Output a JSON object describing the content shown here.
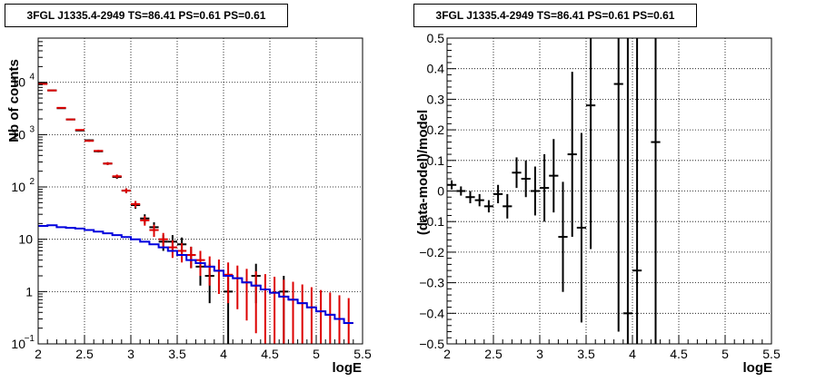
{
  "chart_data": [
    {
      "type": "histogram",
      "title": "3FGL J1335.4-2949 TS=86.41 PS=0.61 PS=0.61",
      "xlabel": "logE",
      "ylabel": "Nb of counts",
      "xlim": [
        2,
        5.5
      ],
      "ylim": [
        0.1,
        70000
      ],
      "yscale": "log",
      "grid": true,
      "x_ticks": [
        "2",
        "2.5",
        "3",
        "3.5",
        "4",
        "4.5",
        "5",
        "5.5"
      ],
      "y_ticks": [
        {
          "value": 0.1,
          "label": "10",
          "exp": "−1"
        },
        {
          "value": 1,
          "label": "1",
          "exp": ""
        },
        {
          "value": 10,
          "label": "10",
          "exp": ""
        },
        {
          "value": 100,
          "label": "10",
          "exp": "2"
        },
        {
          "value": 1000,
          "label": "10",
          "exp": "3"
        },
        {
          "value": 10000,
          "label": "10",
          "exp": "4"
        }
      ],
      "bin_width": 0.1,
      "series": [
        {
          "color": "#000000",
          "x": [
            2.05,
            2.15,
            2.25,
            2.35,
            2.45,
            2.55,
            2.65,
            2.75,
            2.85,
            2.95,
            3.05,
            3.15,
            3.25,
            3.35,
            3.45,
            3.55,
            3.65,
            3.75,
            3.85,
            4.05,
            4.35,
            4.65
          ],
          "y": [
            9500,
            7000,
            3200,
            1950,
            1200,
            780,
            480,
            280,
            155,
            85,
            45,
            25,
            17,
            9,
            9,
            8,
            5,
            3,
            2,
            1,
            2,
            1
          ],
          "y_err_low": [
            100,
            85,
            57,
            44,
            35,
            28,
            22,
            17,
            12.4,
            9.2,
            6.7,
            5,
            4.1,
            3,
            3,
            2.8,
            2.2,
            1.7,
            1.4,
            1,
            1.4,
            1
          ],
          "y_err_high": [
            100,
            85,
            57,
            44,
            35,
            28,
            22,
            17,
            12.4,
            9.2,
            6.7,
            5,
            4.1,
            3,
            3,
            2.8,
            2.2,
            1.7,
            1.4,
            1,
            1.4,
            1
          ]
        },
        {
          "color": "#dd0000",
          "x": [
            2.05,
            2.15,
            2.25,
            2.35,
            2.45,
            2.55,
            2.65,
            2.75,
            2.85,
            2.95,
            3.05,
            3.15,
            3.25,
            3.35,
            3.45,
            3.55,
            3.65,
            3.75,
            3.85,
            3.95,
            4.05,
            4.15,
            4.25,
            4.35,
            4.45,
            4.55,
            4.65,
            4.75,
            4.85,
            4.95,
            5.05,
            5.15,
            5.25,
            5.35
          ],
          "y": [
            9300,
            7000,
            3250,
            1950,
            1230,
            760,
            490,
            280,
            160,
            85,
            47,
            23,
            15,
            10,
            7,
            6,
            5,
            4,
            3,
            2.5,
            2.1,
            1.8,
            1.5,
            1.3,
            1.1,
            0.95,
            0.8,
            0.7,
            0.6,
            0.5,
            0.42,
            0.36,
            0.3,
            0.25
          ],
          "y_err_low": [
            96,
            84,
            57,
            44,
            35,
            28,
            22,
            17,
            12.6,
            9.2,
            6.9,
            4.8,
            3.9,
            3.2,
            2.6,
            2.4,
            2.2,
            2,
            1.7,
            1.6,
            1.5,
            1.34,
            1.22,
            1.14,
            1.05,
            0.95,
            0.8,
            0.7,
            0.6,
            0.5,
            0.42,
            0.36,
            0.3,
            0.25
          ],
          "y_err_high": [
            96,
            84,
            57,
            44,
            35,
            28,
            22,
            17,
            12.6,
            9.2,
            6.9,
            4.8,
            3.9,
            3.2,
            2.6,
            2.4,
            2.2,
            2,
            1.7,
            1.6,
            1.5,
            1.34,
            1.22,
            1.14,
            1.05,
            0.97,
            0.89,
            0.84,
            0.77,
            0.71,
            0.65,
            0.6,
            0.55,
            0.5
          ]
        },
        {
          "color": "#0000dd",
          "style": "step",
          "x": [
            2.05,
            2.15,
            2.25,
            2.35,
            2.45,
            2.55,
            2.65,
            2.75,
            2.85,
            2.95,
            3.05,
            3.15,
            3.25,
            3.35,
            3.45,
            3.55,
            3.65,
            3.75,
            3.85,
            3.95,
            4.05,
            4.15,
            4.25,
            4.35,
            4.45,
            4.55,
            4.65,
            4.75,
            4.85,
            4.95,
            5.05,
            5.15,
            5.25,
            5.35
          ],
          "y": [
            18,
            18.5,
            17,
            16.5,
            16,
            15,
            14,
            13,
            12,
            11,
            10,
            9,
            8,
            7,
            6,
            5,
            4,
            3.5,
            3,
            2.5,
            2,
            1.8,
            1.5,
            1.3,
            1.1,
            0.95,
            0.8,
            0.7,
            0.6,
            0.5,
            0.42,
            0.36,
            0.3,
            0.25
          ]
        }
      ]
    },
    {
      "type": "scatter",
      "title": "3FGL J1335.4-2949 TS=86.41 PS=0.61 PS=0.61",
      "xlabel": "logE",
      "ylabel": "(data-model)/model",
      "xlim": [
        2,
        5.5
      ],
      "ylim": [
        -0.5,
        0.5
      ],
      "grid": true,
      "x_ticks": [
        "2",
        "2.5",
        "3",
        "3.5",
        "4",
        "4.5",
        "5",
        "5.5"
      ],
      "y_ticks": [
        "−0.5",
        "−0.4",
        "−0.3",
        "−0.2",
        "−0.1",
        "0",
        "0.1",
        "0.2",
        "0.3",
        "0.4",
        "0.5"
      ],
      "bin_width": 0.1,
      "series": [
        {
          "color": "#000000",
          "x": [
            2.05,
            2.15,
            2.25,
            2.35,
            2.45,
            2.55,
            2.65,
            2.75,
            2.85,
            2.95,
            3.05,
            3.15,
            3.25,
            3.35,
            3.45,
            3.55,
            3.85,
            3.95,
            4.05,
            4.25
          ],
          "y": [
            0.02,
            0.0,
            -0.02,
            -0.03,
            -0.05,
            -0.01,
            -0.05,
            0.06,
            0.04,
            0.0,
            0.01,
            0.05,
            -0.15,
            0.12,
            -0.12,
            0.28,
            0.35,
            -0.4,
            -0.26,
            0.16
          ],
          "y_err_low": [
            0.015,
            0.015,
            0.02,
            0.02,
            0.02,
            0.03,
            0.04,
            0.05,
            0.06,
            0.08,
            0.11,
            0.12,
            0.18,
            0.27,
            0.31,
            0.47,
            0.81,
            0.1,
            0.24,
            0.66
          ],
          "y_err_high": [
            0.015,
            0.015,
            0.02,
            0.02,
            0.02,
            0.03,
            0.04,
            0.05,
            0.06,
            0.08,
            0.11,
            0.12,
            0.18,
            0.27,
            0.31,
            0.22,
            0.15,
            0.9,
            0.76,
            0.34
          ]
        }
      ]
    }
  ]
}
